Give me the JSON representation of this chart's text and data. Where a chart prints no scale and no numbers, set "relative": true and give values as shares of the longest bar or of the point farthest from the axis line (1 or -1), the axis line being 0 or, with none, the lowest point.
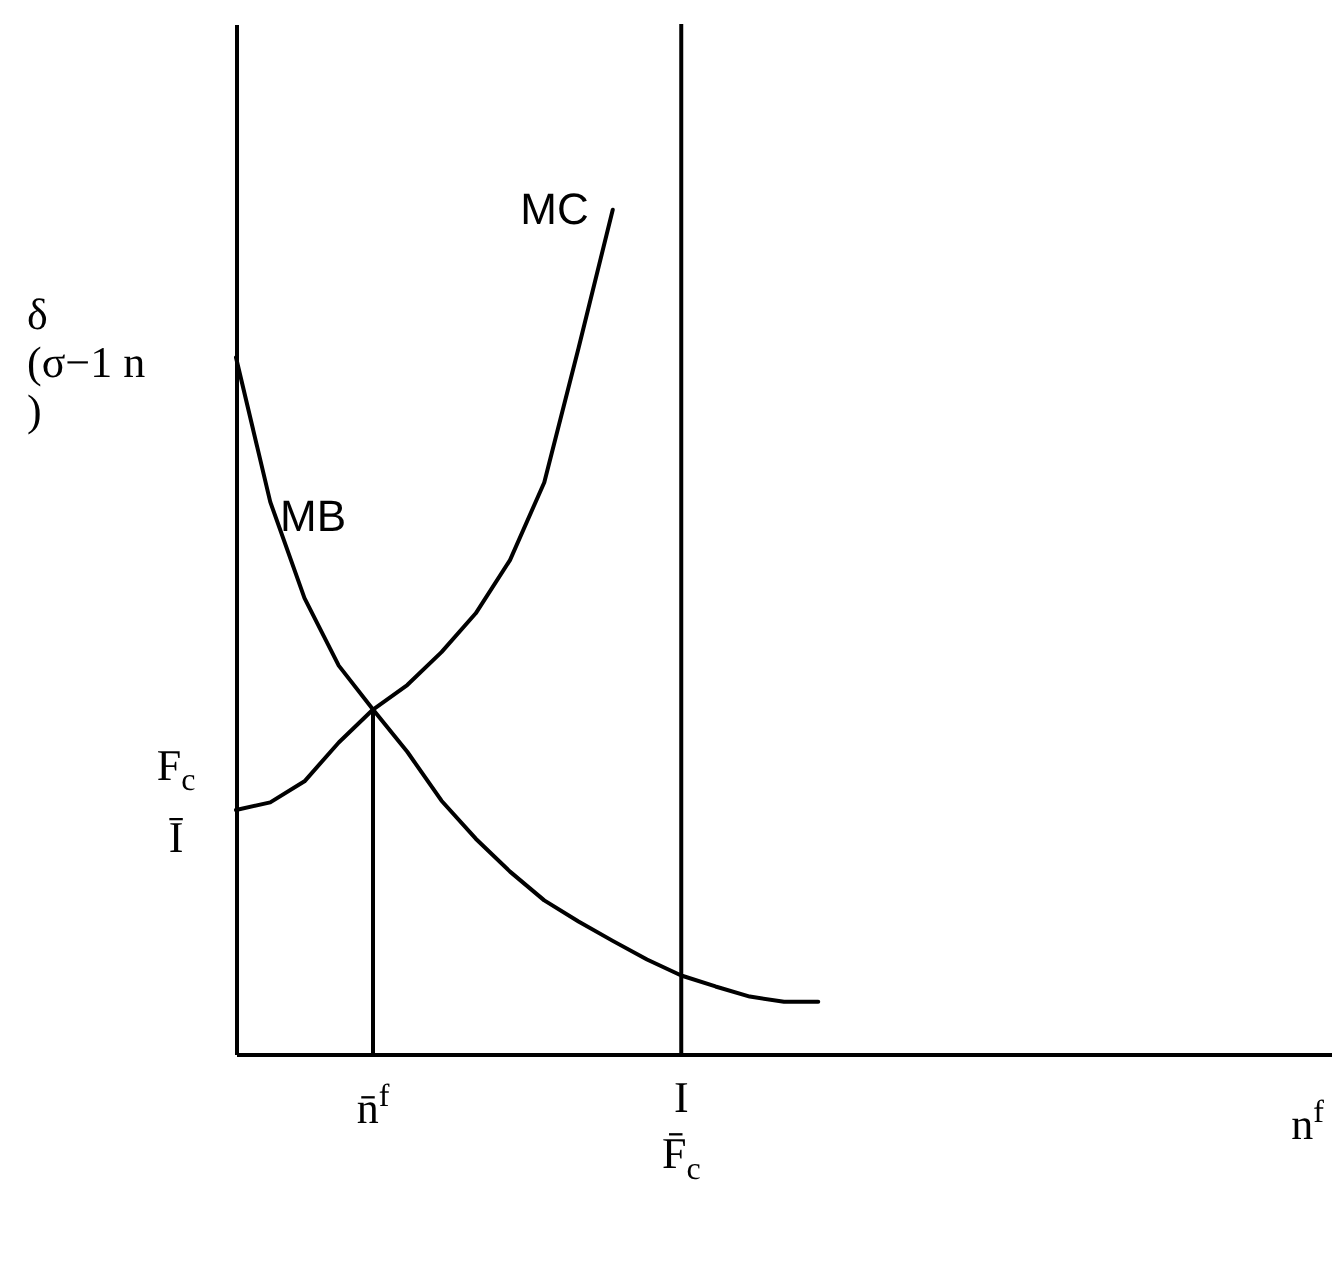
{
  "chart_data": {
    "type": "line",
    "relative": true,
    "ylabel": "δ\n(σ−1 n\n)",
    "xlabel": "n$^{f}$",
    "categories": [
      null,
      null,
      null,
      null,
      "n̄$^{f}$",
      null,
      null,
      null,
      null,
      null,
      null,
      null,
      null,
      "I\nF̄$_{c}$",
      null,
      null,
      null,
      null,
      null,
      null,
      null,
      null,
      null,
      null,
      null,
      null,
      null,
      null,
      null,
      null,
      null,
      null,
      null
    ],
    "series": [
      {
        "name": "MC",
        "color": "#000000",
        "values": [
          0.289,
          0.298,
          0.323,
          0.369,
          0.408,
          0.437,
          0.476,
          0.522,
          0.585,
          0.677,
          0.836,
          1.0,
          null,
          null,
          null,
          null,
          null,
          null,
          null,
          null,
          null,
          null,
          null,
          null,
          null,
          null,
          null,
          null,
          null,
          null,
          null,
          null,
          null
        ]
      },
      {
        "name": "MB",
        "color": "#000000",
        "values": [
          0.825,
          0.654,
          0.54,
          0.46,
          0.408,
          0.358,
          0.3,
          0.255,
          0.216,
          0.182,
          0.157,
          0.134,
          0.112,
          0.093,
          0.08,
          0.068,
          0.062,
          0.062,
          null,
          null,
          null,
          null,
          null,
          null,
          null,
          null,
          null,
          null,
          null,
          null,
          null,
          null,
          null
        ]
      },
      {
        "type": "line",
        "color": "#000000",
        "x": [
          "n̄$^{f}$",
          "n̄$^{f}$"
        ],
        "values": [
          0,
          0.408
        ]
      }
    ],
    "ref_lines": [
      {
        "axis": "x",
        "value": "I\nF̄$_{c}$",
        "color": "#000000"
      }
    ],
    "annotations": [
      "F$_{c}$\nĪ"
    ],
    "line_style": "solid",
    "marker": "none"
  }
}
